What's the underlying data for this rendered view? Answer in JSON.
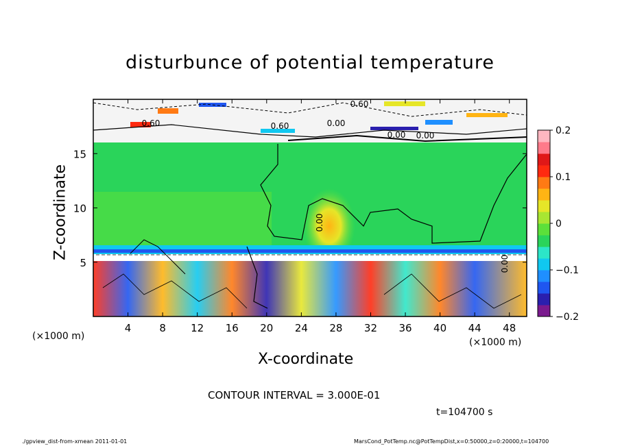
{
  "chart_data": {
    "type": "heatmap",
    "title": "disturbunce of potential temperature",
    "xlabel": "X-coordinate",
    "ylabel": "Z-coordinate",
    "x_unit_label": "(×1000 m)",
    "x_unit_label_right": "(×1000 m)",
    "x_ticks": [
      "4",
      "8",
      "12",
      "16",
      "20",
      "24",
      "28",
      "32",
      "36",
      "40",
      "44",
      "48"
    ],
    "x_tick_values": [
      4,
      8,
      12,
      16,
      20,
      24,
      28,
      32,
      36,
      40,
      44,
      48
    ],
    "xlim": [
      0,
      50
    ],
    "y_ticks": [
      "5",
      "10",
      "15"
    ],
    "y_tick_values": [
      5,
      10,
      15
    ],
    "ylim": [
      0,
      20
    ],
    "colorbar": {
      "ticks": [
        "0.2",
        "0.1",
        "0",
        "−0.1",
        "−0.2"
      ],
      "tick_values": [
        0.2,
        0.1,
        0,
        -0.1,
        -0.2
      ],
      "range": [
        -0.2,
        0.2
      ],
      "colors": [
        "#7a1a8e",
        "#2a1fae",
        "#1f56f0",
        "#1f8fff",
        "#10c8f0",
        "#2ce6c8",
        "#2ad45a",
        "#5ce03a",
        "#a8e632",
        "#e6e628",
        "#ffb414",
        "#ff7a14",
        "#ff2a10",
        "#e01818",
        "#ff7a8a",
        "#ffb6c0"
      ]
    },
    "contour_labels": [
      "0.60",
      "0.60",
      "0.00",
      "0.00",
      "0.60",
      "0.00",
      "0.00",
      "0.00"
    ],
    "contour_interval_text": "CONTOUR INTERVAL = 3.000E-01",
    "time_text": "t=104700 s",
    "grid": false
  },
  "footer": {
    "left": "./gpview_dist-from-xmean  2011-01-01",
    "right": "MarsCond_PotTemp.nc@PotTempDist,x=0:50000,z=0:20000,t=104700"
  }
}
